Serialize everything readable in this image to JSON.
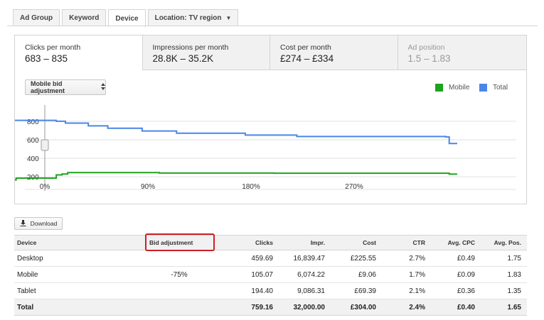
{
  "tabs": [
    {
      "label": "Ad Group"
    },
    {
      "label": "Keyword"
    },
    {
      "label": "Device"
    },
    {
      "label": "Location: TV region",
      "caret": "▼"
    }
  ],
  "metrics": [
    {
      "name": "Clicks per month",
      "value": "683 – 835"
    },
    {
      "name": "Impressions per month",
      "value": "28.8K – 35.2K"
    },
    {
      "name": "Cost per month",
      "value": "£274 – £334"
    },
    {
      "name": "Ad position",
      "value": "1.5 – 1.83"
    }
  ],
  "bid_select": {
    "label": "Mobile bid adjustment",
    "icon": "up-down-arrows-icon"
  },
  "legend": [
    {
      "name": "Mobile",
      "color": "#1fa31f"
    },
    {
      "name": "Total",
      "color": "#4a86e8"
    }
  ],
  "chart_data": {
    "type": "line",
    "y_ticks": [
      "800",
      "600",
      "400",
      "200"
    ],
    "ylim": [
      70,
      945
    ],
    "x_ticks": [
      "0%",
      "90%",
      "180%",
      "270%"
    ],
    "slider": "slider-handle-icon",
    "series": [
      {
        "name": "Total",
        "color": "#4a86e8",
        "x": [
          -0.39,
          -0.31,
          0,
          0.1,
          0.18,
          0.38,
          0.55,
          0.85,
          1.15,
          1.75,
          2.2,
          3.5,
          3.53,
          3.6
        ],
        "y": [
          810,
          810,
          810,
          800,
          780,
          750,
          725,
          695,
          670,
          650,
          635,
          630,
          560,
          560
        ]
      },
      {
        "name": "Mobile",
        "color": "#1fa31f",
        "x": [
          -0.39,
          -0.35,
          -0.3,
          -0.25,
          0,
          0.1,
          0.15,
          0.2,
          1.0,
          2.0,
          3.5,
          3.53,
          3.6
        ],
        "y": [
          140,
          150,
          165,
          185,
          185,
          220,
          230,
          245,
          240,
          238,
          238,
          228,
          228
        ]
      }
    ]
  },
  "download": {
    "label": "Download",
    "icon": "download-icon"
  },
  "table": {
    "headers": [
      "Device",
      "Bid adjustment",
      "Clicks",
      "Impr.",
      "Cost",
      "CTR",
      "Avg. CPC",
      "Avg. Pos."
    ],
    "rows": [
      [
        "Desktop",
        "",
        "459.69",
        "16,839.47",
        "£225.55",
        "2.7%",
        "£0.49",
        "1.75"
      ],
      [
        "Mobile",
        "-75%",
        "105.07",
        "6,074.22",
        "£9.06",
        "1.7%",
        "£0.09",
        "1.83"
      ],
      [
        "Tablet",
        "",
        "194.40",
        "9,086.31",
        "£69.39",
        "2.1%",
        "£0.36",
        "1.35"
      ]
    ],
    "total": [
      "Total",
      "",
      "759.16",
      "32,000.00",
      "£304.00",
      "2.4%",
      "£0.40",
      "1.65"
    ]
  },
  "highlight_color": "#cc2027"
}
